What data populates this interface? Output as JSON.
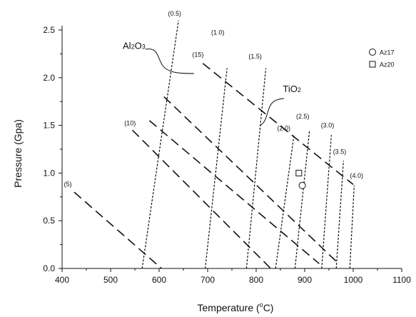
{
  "chart_data": {
    "type": "line",
    "title": "",
    "xlabel": "Temperature (°C)",
    "xlabel_main": "Temperature (",
    "xlabel_sup": "o",
    "xlabel_tail": "C)",
    "ylabel": "Pressure (Gpa)",
    "xlim": [
      400,
      1100
    ],
    "ylim": [
      0.0,
      2.5
    ],
    "xticks": [
      400,
      500,
      600,
      700,
      800,
      900,
      1000,
      1100
    ],
    "xtick_labels": [
      "400",
      "500",
      "600",
      "700",
      "800",
      "900",
      "1000",
      "1100"
    ],
    "yticks": [
      0.0,
      0.5,
      1.0,
      1.5,
      2.0,
      2.5
    ],
    "ytick_labels": [
      "0.0",
      "0.5",
      "1.0",
      "1.5",
      "2.0",
      "2.5"
    ],
    "grid": false,
    "legend_position": "top-right",
    "al2o3_isopleths": [
      {
        "name": "(5)",
        "label": "(5)",
        "x": [
          425,
          605
        ],
        "y": [
          0.8,
          0.0
        ],
        "label_at": [
          412,
          0.86
        ]
      },
      {
        "name": "(10)",
        "label": "(10)",
        "x": [
          545,
          830
        ],
        "y": [
          1.45,
          0.0
        ],
        "label_at": [
          540,
          1.5
        ]
      },
      {
        "name": "(15)",
        "label": "(15)",
        "x": [
          690,
          1000
        ],
        "y": [
          2.15,
          0.88
        ],
        "label_at": [
          680,
          2.22
        ]
      },
      {
        "name": "",
        "label": "",
        "x": [
          610,
          970
        ],
        "y": [
          1.8,
          0.05
        ],
        "label_at": null
      },
      {
        "name": "",
        "label": "",
        "x": [
          580,
          930
        ],
        "y": [
          1.55,
          0.05
        ],
        "label_at": null
      }
    ],
    "tio2_isopleths": [
      {
        "name": "(0.5)",
        "label": "(0.5)",
        "x": [
          565,
          640
        ],
        "y": [
          0.0,
          2.6
        ],
        "label_at": [
          632,
          2.65
        ]
      },
      {
        "name": "(1.0)",
        "label": "(1.0)",
        "x": [
          695,
          740
        ],
        "y": [
          0.0,
          2.1
        ],
        "label_at": [
          721,
          2.45
        ]
      },
      {
        "name": "(1.5)",
        "label": "(1.5)",
        "x": [
          780,
          820
        ],
        "y": [
          0.0,
          2.1
        ],
        "label_at": [
          798,
          2.2
        ]
      },
      {
        "name": "(2.0)",
        "label": "(2.0)",
        "x": [
          840,
          878
        ],
        "y": [
          0.0,
          1.4
        ],
        "label_at": [
          857,
          1.45
        ]
      },
      {
        "name": "(2.5)",
        "label": "(2.5)",
        "x": [
          880,
          910
        ],
        "y": [
          0.0,
          1.45
        ],
        "label_at": [
          896,
          1.57
        ]
      },
      {
        "name": "(3.0)",
        "label": "(3.0)",
        "x": [
          935,
          955
        ],
        "y": [
          0.0,
          1.4
        ],
        "label_at": [
          947,
          1.48
        ]
      },
      {
        "name": "(3.5)",
        "label": "(3.5)",
        "x": [
          965,
          980
        ],
        "y": [
          0.0,
          1.13
        ],
        "label_at": [
          972,
          1.2
        ]
      },
      {
        "name": "(4.0)",
        "label": "(4.0)",
        "x": [
          993,
          1002
        ],
        "y": [
          0.0,
          0.87
        ],
        "label_at": [
          1007,
          0.95
        ]
      }
    ],
    "annotations": [
      {
        "text": "Al2O3",
        "at": [
          525,
          2.3
        ]
      },
      {
        "text": "TiO2",
        "at": [
          855,
          1.85
        ]
      }
    ],
    "series": [
      {
        "name": "Az17",
        "marker": "circle",
        "x": [
          895
        ],
        "y": [
          0.87
        ]
      },
      {
        "name": "Az20",
        "marker": "square",
        "x": [
          888
        ],
        "y": [
          1.0
        ]
      }
    ]
  }
}
